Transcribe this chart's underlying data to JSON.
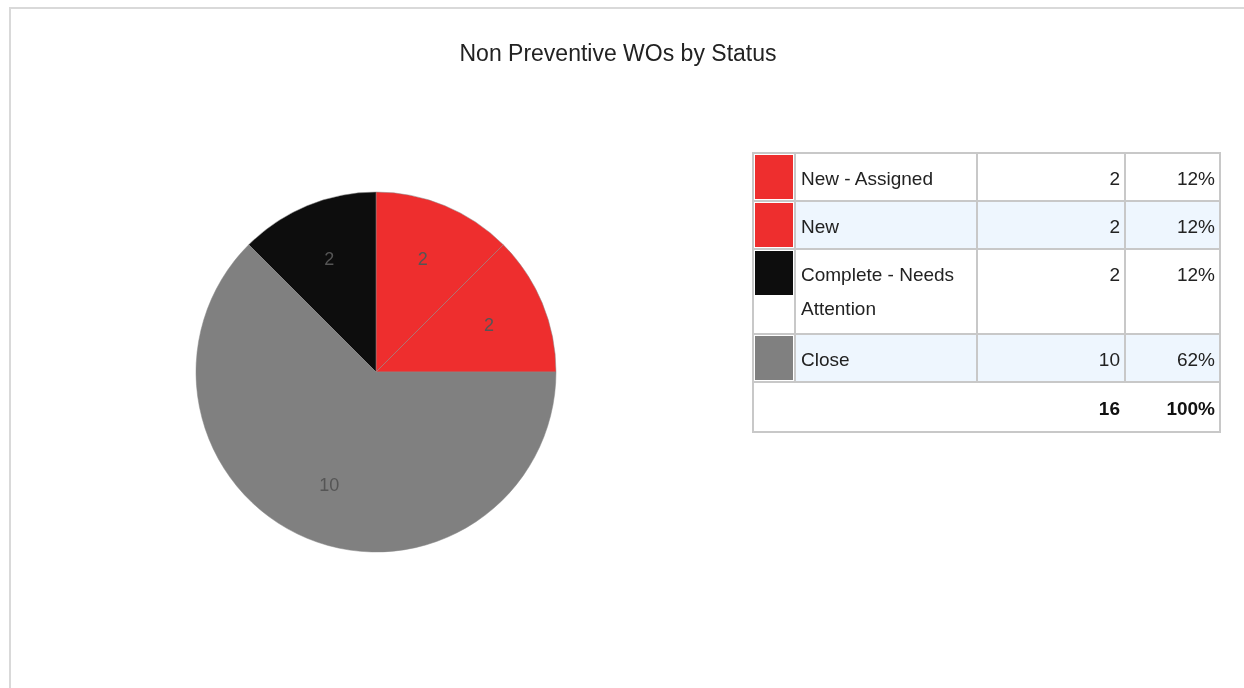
{
  "chart_data": {
    "type": "pie",
    "title": "Non Preventive WOs by Status",
    "categories": [
      "New - Assigned",
      "New",
      "Complete - Needs Attention",
      "Close"
    ],
    "values": [
      2,
      2,
      2,
      10
    ],
    "colors": [
      "#ee2e2e",
      "#ee2e2e",
      "#0d0d0d",
      "#808080"
    ],
    "data_labels": true,
    "annotations": [
      "2",
      "12%",
      "2",
      "12%",
      "2",
      "12%",
      "10",
      "62%"
    ],
    "totals": [
      "16",
      "100%"
    ],
    "legend": "right"
  }
}
